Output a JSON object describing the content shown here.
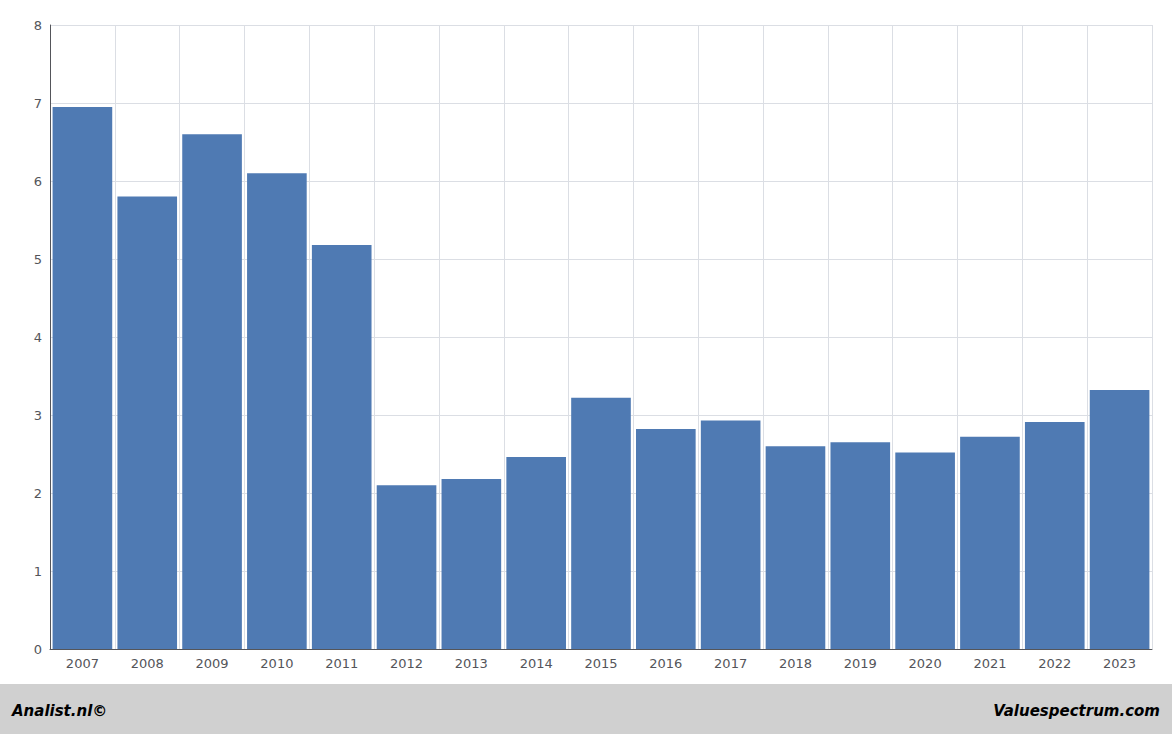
{
  "chart_data": {
    "type": "bar",
    "categories": [
      "2007",
      "2008",
      "2009",
      "2010",
      "2011",
      "2012",
      "2013",
      "2014",
      "2015",
      "2016",
      "2017",
      "2018",
      "2019",
      "2020",
      "2021",
      "2022",
      "2023"
    ],
    "values": [
      6.95,
      5.8,
      6.6,
      6.1,
      5.18,
      2.1,
      2.18,
      2.46,
      3.22,
      2.82,
      2.93,
      2.6,
      2.65,
      2.52,
      2.72,
      2.91,
      3.32
    ],
    "color": "#4f7ab3",
    "ylim": [
      0,
      8
    ],
    "yticks": [
      0,
      1,
      2,
      3,
      4,
      5,
      6,
      7,
      8
    ],
    "grid": true,
    "annotations": [
      "Analist.nl©",
      "Valuespectrum.com"
    ]
  }
}
